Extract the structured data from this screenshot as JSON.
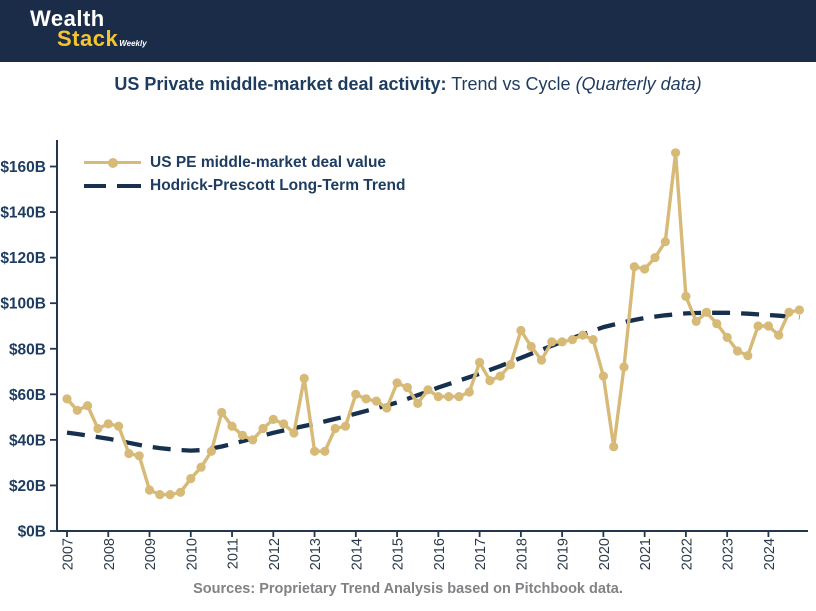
{
  "banner": {
    "brand_line1": "Wealth",
    "brand_line2": "Stack",
    "brand_suffix": "Weekly",
    "bg_color": "#1b2c48",
    "accent_color": "#f5c431"
  },
  "title": {
    "bold": "US Private middle-market deal activity:",
    "regular": " Trend vs Cycle ",
    "italic": "(Quarterly data)",
    "color": "#1d3c5f"
  },
  "legend": {
    "items": [
      {
        "label": "US PE middle-market deal value",
        "style": "solid-with-marker",
        "color": "#d7ba77"
      },
      {
        "label": "Hodrick-Prescott Long-Term Trend",
        "style": "dashed",
        "color": "#16304d"
      }
    ]
  },
  "footer": {
    "text": "Sources: Proprietary Trend Analysis based on Pitchbook data."
  },
  "chart_data": {
    "type": "line",
    "title": "US Private middle-market deal activity: Trend vs Cycle (Quarterly data)",
    "frequency": "quarterly",
    "x_start_year": 2007,
    "x_tick_labels": [
      "2007",
      "2008",
      "2009",
      "2010",
      "2011",
      "2012",
      "2013",
      "2014",
      "2015",
      "2016",
      "2017",
      "2018",
      "2019",
      "2020",
      "2021",
      "2022",
      "2023",
      "2024"
    ],
    "y_ticks": [
      0,
      20,
      40,
      60,
      80,
      100,
      120,
      140,
      160
    ],
    "y_tick_format": "$%dB",
    "ylim": [
      0,
      172
    ],
    "grid": false,
    "legend_position": "upper-left",
    "series": [
      {
        "name": "US PE middle-market deal value",
        "color": "#d7ba77",
        "marker": "circle",
        "dash": false,
        "values": [
          58,
          53,
          55,
          45,
          47,
          46,
          34,
          33,
          18,
          16,
          16,
          17,
          23,
          28,
          35,
          52,
          46,
          42,
          40,
          45,
          49,
          47,
          43,
          67,
          35,
          35,
          45,
          46,
          60,
          58,
          57,
          54,
          65,
          63,
          56,
          62,
          59,
          59,
          59,
          61,
          74,
          66,
          68,
          73,
          88,
          81,
          75,
          83,
          83,
          84,
          86,
          84,
          68,
          37,
          72,
          116,
          115,
          120,
          127,
          166,
          103,
          92,
          96,
          91,
          85,
          79,
          77,
          90,
          90,
          86,
          96,
          97
        ]
      },
      {
        "name": "Hodrick-Prescott Long-Term Trend",
        "color": "#16304d",
        "marker": "none",
        "dash": true,
        "values": [
          43.2,
          42.6,
          41.9,
          41.2,
          40.5,
          39.6,
          38.7,
          37.8,
          37.0,
          36.4,
          35.9,
          35.5,
          35.3,
          35.5,
          36.2,
          37.1,
          38.2,
          39.4,
          40.6,
          41.9,
          43.1,
          44.1,
          45.1,
          46.1,
          47.0,
          48.1,
          49.2,
          50.3,
          51.5,
          52.7,
          53.9,
          55.1,
          56.4,
          58.0,
          59.6,
          61.3,
          63.0,
          64.5,
          66.0,
          67.5,
          69.0,
          70.7,
          72.4,
          74.2,
          76.0,
          77.8,
          79.5,
          81.3,
          83.0,
          84.7,
          86.3,
          87.9,
          89.5,
          90.6,
          91.7,
          92.6,
          93.5,
          94.1,
          94.7,
          95.1,
          95.5,
          95.7,
          95.8,
          95.8,
          95.8,
          95.6,
          95.4,
          95.1,
          94.8,
          94.5,
          94.1,
          93.8
        ]
      }
    ]
  }
}
